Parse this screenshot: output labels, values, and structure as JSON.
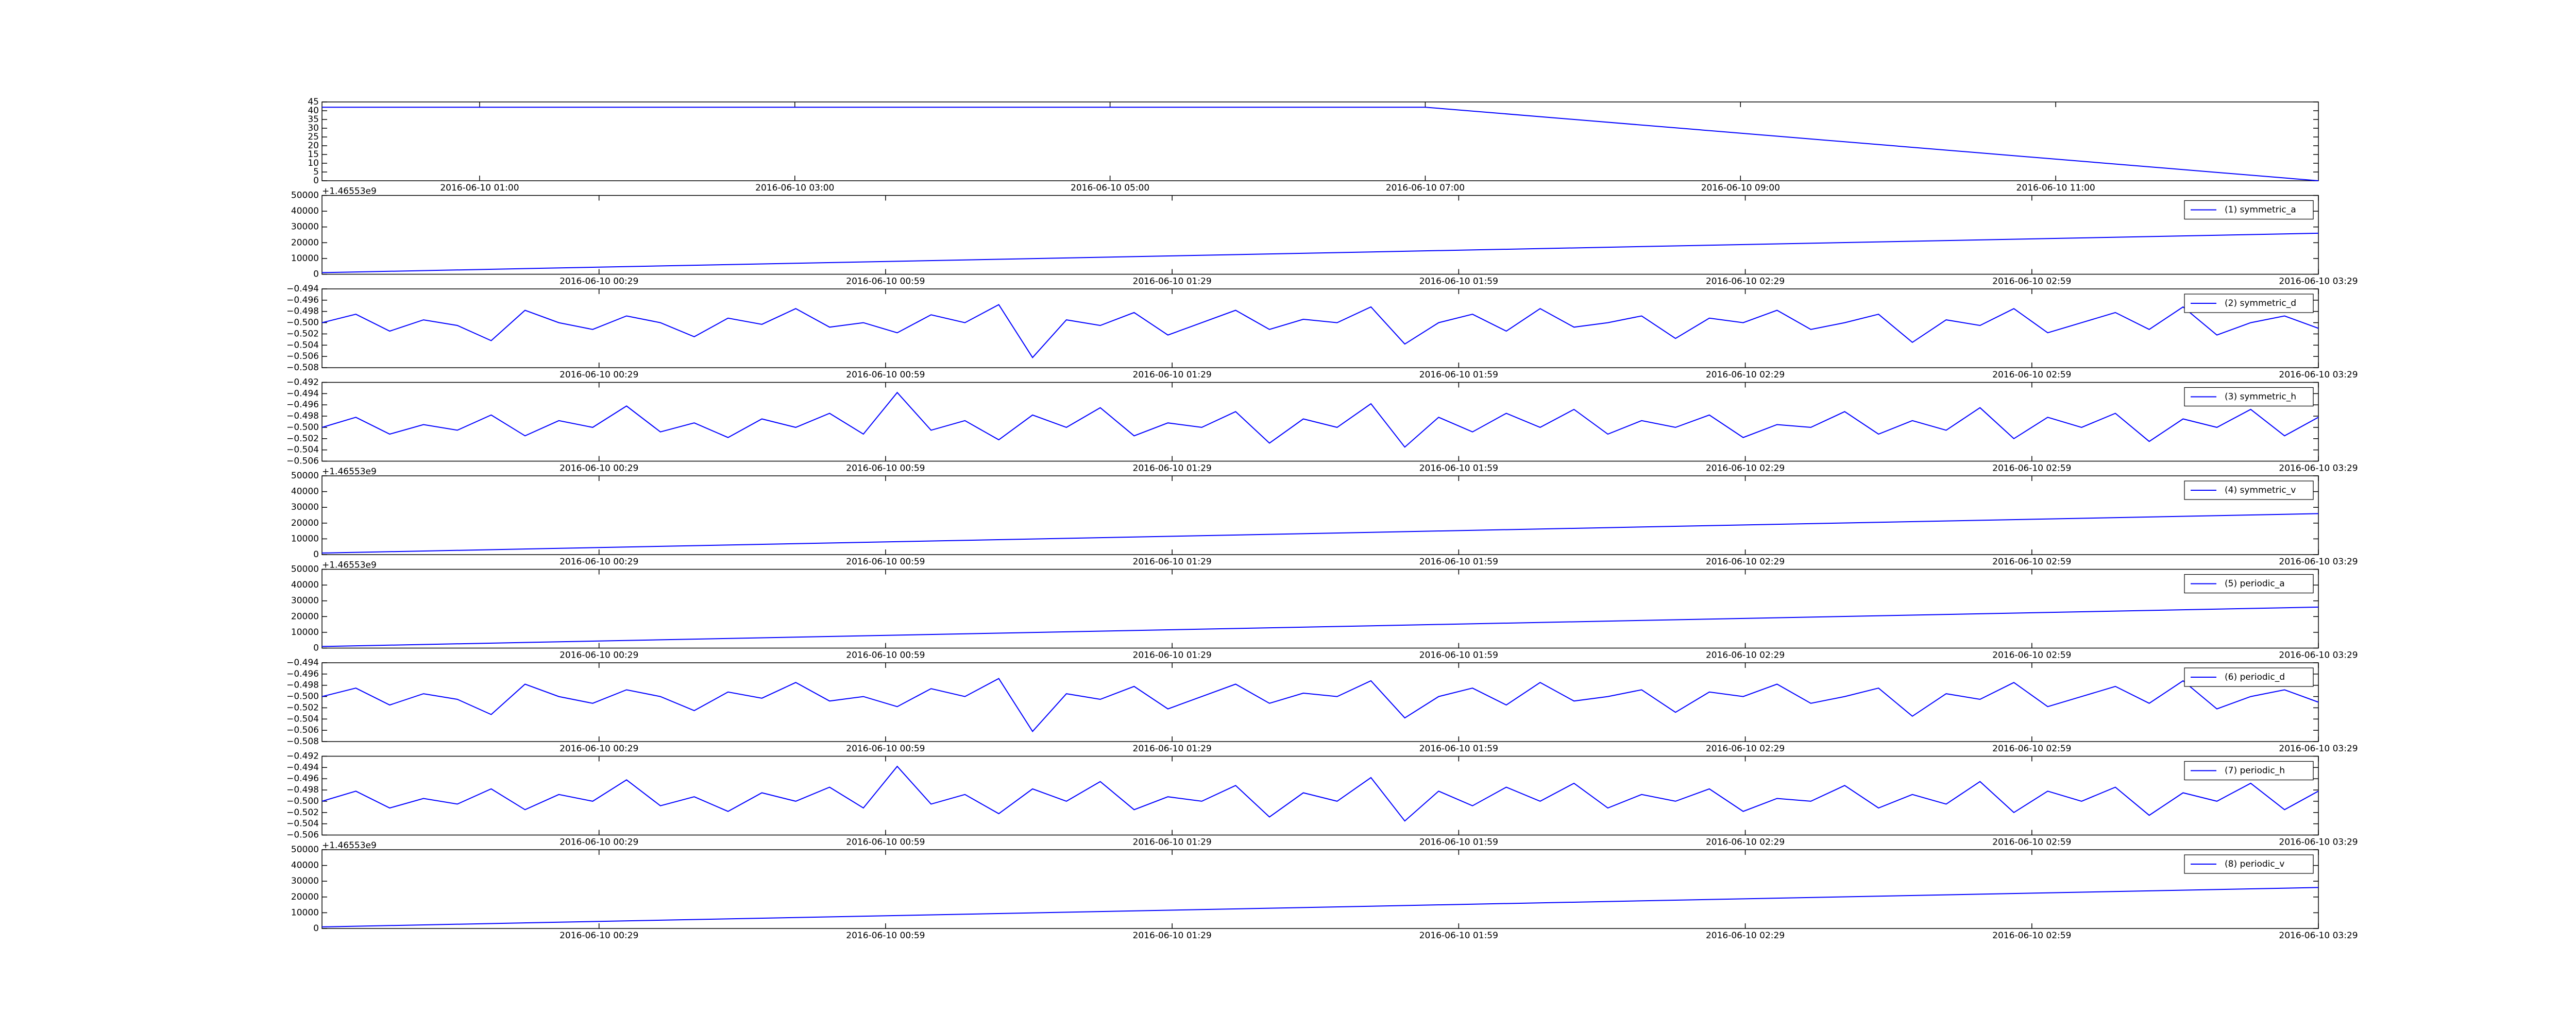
{
  "chart_data": [
    {
      "type": "line",
      "x": [
        "2016-06-10 00:00",
        "2016-06-10 07:00",
        "2016-06-10 12:40"
      ],
      "values": [
        42,
        42,
        0
      ],
      "color": "#0000ff",
      "xlim": [
        "2016-06-10 00:00",
        "2016-06-10 12:40"
      ],
      "xticks": [
        "2016-06-10 01:00",
        "2016-06-10 03:00",
        "2016-06-10 05:00",
        "2016-06-10 07:00",
        "2016-06-10 09:00",
        "2016-06-10 11:00"
      ],
      "ylim": [
        0,
        45
      ],
      "yticks": [
        0,
        5,
        10,
        15,
        20,
        25,
        30,
        35,
        40,
        45
      ]
    },
    {
      "type": "line",
      "offset_text": "+1.46553e9",
      "series": [
        {
          "name": "(1) symmetric_a",
          "color": "#0000ff",
          "values": [
            1000,
            26000
          ]
        }
      ],
      "xlim": [
        "2016-06-10 00:00",
        "2016-06-10 03:29"
      ],
      "xticks": [
        "2016-06-10 00:29",
        "2016-06-10 00:59",
        "2016-06-10 01:29",
        "2016-06-10 01:59",
        "2016-06-10 02:29",
        "2016-06-10 02:59",
        "2016-06-10 03:29"
      ],
      "ylim": [
        0,
        50000
      ],
      "yticks": [
        0,
        10000,
        20000,
        30000,
        40000,
        50000
      ]
    },
    {
      "type": "line",
      "series": [
        {
          "name": "(2) symmetric_d",
          "color": "#0000ff",
          "values": [
            -0.5,
            -0.4985,
            -0.5015,
            -0.4995,
            -0.5005,
            -0.5032,
            -0.4978,
            -0.5,
            -0.5012,
            -0.4988,
            -0.5,
            -0.5025,
            -0.4992,
            -0.5003,
            -0.4975,
            -0.5008,
            -0.5,
            -0.5018,
            -0.4986,
            -0.5,
            -0.4968,
            -0.5062,
            -0.4995,
            -0.5005,
            -0.4982,
            -0.5022,
            -0.5,
            -0.4978,
            -0.5012,
            -0.4994,
            -0.5,
            -0.4972,
            -0.5038,
            -0.5,
            -0.4985,
            -0.5015,
            -0.4975,
            -0.5008,
            -0.5,
            -0.4988,
            -0.5028,
            -0.4992,
            -0.5,
            -0.4978,
            -0.5012,
            -0.5,
            -0.4985,
            -0.5035,
            -0.4995,
            -0.5005,
            -0.4975,
            -0.5018,
            -0.5,
            -0.4982,
            -0.5012,
            -0.4972,
            -0.5022,
            -0.5,
            -0.4988,
            -0.501
          ]
        }
      ],
      "xlim": [
        "2016-06-10 00:00",
        "2016-06-10 03:29"
      ],
      "xticks": [
        "2016-06-10 00:29",
        "2016-06-10 00:59",
        "2016-06-10 01:29",
        "2016-06-10 01:59",
        "2016-06-10 02:29",
        "2016-06-10 02:59",
        "2016-06-10 03:29"
      ],
      "ylim": [
        -0.508,
        -0.494
      ],
      "yticks": [
        {
          "value": -0.508,
          "label": "−0.508"
        },
        {
          "value": -0.506,
          "label": "−0.506"
        },
        {
          "value": -0.504,
          "label": "−0.504"
        },
        {
          "value": -0.502,
          "label": "−0.502"
        },
        {
          "value": -0.5,
          "label": "−0.500"
        },
        {
          "value": -0.498,
          "label": "−0.498"
        },
        {
          "value": -0.496,
          "label": "−0.496"
        },
        {
          "value": -0.494,
          "label": "−0.494"
        }
      ]
    },
    {
      "type": "line",
      "series": [
        {
          "name": "(3) symmetric_h",
          "color": "#0000ff",
          "values": [
            -0.5,
            -0.4982,
            -0.5012,
            -0.4995,
            -0.5005,
            -0.4978,
            -0.5015,
            -0.4988,
            -0.5,
            -0.4962,
            -0.5008,
            -0.4992,
            -0.5018,
            -0.4985,
            -0.5,
            -0.4975,
            -0.5012,
            -0.4938,
            -0.5005,
            -0.4988,
            -0.5022,
            -0.4978,
            -0.5,
            -0.4965,
            -0.5015,
            -0.4992,
            -0.5,
            -0.4972,
            -0.5028,
            -0.4985,
            -0.5,
            -0.4958,
            -0.5035,
            -0.4982,
            -0.5008,
            -0.4975,
            -0.5,
            -0.4968,
            -0.5012,
            -0.4988,
            -0.5,
            -0.4978,
            -0.5018,
            -0.4995,
            -0.5,
            -0.4972,
            -0.5012,
            -0.4988,
            -0.5005,
            -0.4965,
            -0.502,
            -0.4982,
            -0.5,
            -0.4975,
            -0.5025,
            -0.4985,
            -0.5,
            -0.4968,
            -0.5015,
            -0.4982
          ]
        }
      ],
      "xlim": [
        "2016-06-10 00:00",
        "2016-06-10 03:29"
      ],
      "xticks": [
        "2016-06-10 00:29",
        "2016-06-10 00:59",
        "2016-06-10 01:29",
        "2016-06-10 01:59",
        "2016-06-10 02:29",
        "2016-06-10 02:59",
        "2016-06-10 03:29"
      ],
      "ylim": [
        -0.506,
        -0.492
      ],
      "yticks": [
        {
          "value": -0.506,
          "label": "−0.506"
        },
        {
          "value": -0.504,
          "label": "−0.504"
        },
        {
          "value": -0.502,
          "label": "−0.502"
        },
        {
          "value": -0.5,
          "label": "−0.500"
        },
        {
          "value": -0.498,
          "label": "−0.498"
        },
        {
          "value": -0.496,
          "label": "−0.496"
        },
        {
          "value": -0.494,
          "label": "−0.494"
        },
        {
          "value": -0.492,
          "label": "−0.492"
        }
      ]
    },
    {
      "type": "line",
      "offset_text": "+1.46553e9",
      "series": [
        {
          "name": "(4) symmetric_v",
          "color": "#0000ff",
          "values": [
            1000,
            26000
          ]
        }
      ],
      "xlim": [
        "2016-06-10 00:00",
        "2016-06-10 03:29"
      ],
      "xticks": [
        "2016-06-10 00:29",
        "2016-06-10 00:59",
        "2016-06-10 01:29",
        "2016-06-10 01:59",
        "2016-06-10 02:29",
        "2016-06-10 02:59",
        "2016-06-10 03:29"
      ],
      "ylim": [
        0,
        50000
      ],
      "yticks": [
        0,
        10000,
        20000,
        30000,
        40000,
        50000
      ]
    },
    {
      "type": "line",
      "offset_text": "+1.46553e9",
      "series": [
        {
          "name": "(5) periodic_a",
          "color": "#0000ff",
          "values": [
            1000,
            26000
          ]
        }
      ],
      "xlim": [
        "2016-06-10 00:00",
        "2016-06-10 03:29"
      ],
      "xticks": [
        "2016-06-10 00:29",
        "2016-06-10 00:59",
        "2016-06-10 01:29",
        "2016-06-10 01:59",
        "2016-06-10 02:29",
        "2016-06-10 02:59",
        "2016-06-10 03:29"
      ],
      "ylim": [
        0,
        50000
      ],
      "yticks": [
        0,
        10000,
        20000,
        30000,
        40000,
        50000
      ]
    },
    {
      "type": "line",
      "series": [
        {
          "name": "(6) periodic_d",
          "color": "#0000ff",
          "values": [
            -0.5,
            -0.4985,
            -0.5015,
            -0.4995,
            -0.5005,
            -0.5032,
            -0.4978,
            -0.5,
            -0.5012,
            -0.4988,
            -0.5,
            -0.5025,
            -0.4992,
            -0.5003,
            -0.4975,
            -0.5008,
            -0.5,
            -0.5018,
            -0.4986,
            -0.5,
            -0.4968,
            -0.5062,
            -0.4995,
            -0.5005,
            -0.4982,
            -0.5022,
            -0.5,
            -0.4978,
            -0.5012,
            -0.4994,
            -0.5,
            -0.4972,
            -0.5038,
            -0.5,
            -0.4985,
            -0.5015,
            -0.4975,
            -0.5008,
            -0.5,
            -0.4988,
            -0.5028,
            -0.4992,
            -0.5,
            -0.4978,
            -0.5012,
            -0.5,
            -0.4985,
            -0.5035,
            -0.4995,
            -0.5005,
            -0.4975,
            -0.5018,
            -0.5,
            -0.4982,
            -0.5012,
            -0.4972,
            -0.5022,
            -0.5,
            -0.4988,
            -0.501
          ]
        }
      ],
      "xlim": [
        "2016-06-10 00:00",
        "2016-06-10 03:29"
      ],
      "xticks": [
        "2016-06-10 00:29",
        "2016-06-10 00:59",
        "2016-06-10 01:29",
        "2016-06-10 01:59",
        "2016-06-10 02:29",
        "2016-06-10 02:59",
        "2016-06-10 03:29"
      ],
      "ylim": [
        -0.508,
        -0.494
      ],
      "yticks": [
        {
          "value": -0.508,
          "label": "−0.508"
        },
        {
          "value": -0.506,
          "label": "−0.506"
        },
        {
          "value": -0.504,
          "label": "−0.504"
        },
        {
          "value": -0.502,
          "label": "−0.502"
        },
        {
          "value": -0.5,
          "label": "−0.500"
        },
        {
          "value": -0.498,
          "label": "−0.498"
        },
        {
          "value": -0.496,
          "label": "−0.496"
        },
        {
          "value": -0.494,
          "label": "−0.494"
        }
      ]
    },
    {
      "type": "line",
      "series": [
        {
          "name": "(7) periodic_h",
          "color": "#0000ff",
          "values": [
            -0.5,
            -0.4982,
            -0.5012,
            -0.4995,
            -0.5005,
            -0.4978,
            -0.5015,
            -0.4988,
            -0.5,
            -0.4962,
            -0.5008,
            -0.4992,
            -0.5018,
            -0.4985,
            -0.5,
            -0.4975,
            -0.5012,
            -0.4938,
            -0.5005,
            -0.4988,
            -0.5022,
            -0.4978,
            -0.5,
            -0.4965,
            -0.5015,
            -0.4992,
            -0.5,
            -0.4972,
            -0.5028,
            -0.4985,
            -0.5,
            -0.4958,
            -0.5035,
            -0.4982,
            -0.5008,
            -0.4975,
            -0.5,
            -0.4968,
            -0.5012,
            -0.4988,
            -0.5,
            -0.4978,
            -0.5018,
            -0.4995,
            -0.5,
            -0.4972,
            -0.5012,
            -0.4988,
            -0.5005,
            -0.4965,
            -0.502,
            -0.4982,
            -0.5,
            -0.4975,
            -0.5025,
            -0.4985,
            -0.5,
            -0.4968,
            -0.5015,
            -0.4982
          ]
        }
      ],
      "xlim": [
        "2016-06-10 00:00",
        "2016-06-10 03:29"
      ],
      "xticks": [
        "2016-06-10 00:29",
        "2016-06-10 00:59",
        "2016-06-10 01:29",
        "2016-06-10 01:59",
        "2016-06-10 02:29",
        "2016-06-10 02:59",
        "2016-06-10 03:29"
      ],
      "ylim": [
        -0.506,
        -0.492
      ],
      "yticks": [
        {
          "value": -0.506,
          "label": "−0.506"
        },
        {
          "value": -0.504,
          "label": "−0.504"
        },
        {
          "value": -0.502,
          "label": "−0.502"
        },
        {
          "value": -0.5,
          "label": "−0.500"
        },
        {
          "value": -0.498,
          "label": "−0.498"
        },
        {
          "value": -0.496,
          "label": "−0.496"
        },
        {
          "value": -0.494,
          "label": "−0.494"
        },
        {
          "value": -0.492,
          "label": "−0.492"
        }
      ]
    },
    {
      "type": "line",
      "offset_text": "+1.46553e9",
      "series": [
        {
          "name": "(8) periodic_v",
          "color": "#0000ff",
          "values": [
            1000,
            26000
          ]
        }
      ],
      "xlim": [
        "2016-06-10 00:00",
        "2016-06-10 03:29"
      ],
      "xticks": [
        "2016-06-10 00:29",
        "2016-06-10 00:59",
        "2016-06-10 01:29",
        "2016-06-10 01:59",
        "2016-06-10 02:29",
        "2016-06-10 02:59",
        "2016-06-10 03:29"
      ],
      "ylim": [
        0,
        50000
      ],
      "yticks": [
        0,
        10000,
        20000,
        30000,
        40000,
        50000
      ]
    }
  ]
}
